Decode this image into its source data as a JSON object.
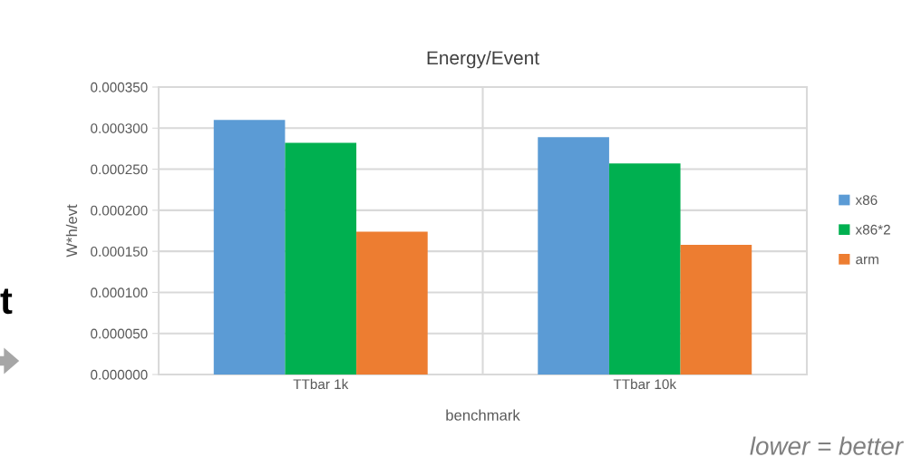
{
  "chart_data": {
    "type": "bar",
    "title": "Energy/Event",
    "xlabel": "benchmark",
    "ylabel": "W*h/evt",
    "categories": [
      "TTbar 1k",
      "TTbar 10k"
    ],
    "series": [
      {
        "name": "x86",
        "color": "#5b9bd5",
        "values": [
          0.00031,
          0.000289
        ]
      },
      {
        "name": "x86*2",
        "color": "#00b050",
        "values": [
          0.000282,
          0.000257
        ]
      },
      {
        "name": "arm",
        "color": "#ed7d31",
        "values": [
          0.000174,
          0.000158
        ]
      }
    ],
    "ylim": [
      0,
      0.00035
    ],
    "yticks": [
      {
        "value": 0,
        "label": "0.000000"
      },
      {
        "value": 5e-05,
        "label": "0.000050"
      },
      {
        "value": 0.0001,
        "label": "0.000100"
      },
      {
        "value": 0.00015,
        "label": "0.000150"
      },
      {
        "value": 0.0002,
        "label": "0.000200"
      },
      {
        "value": 0.00025,
        "label": "0.000250"
      },
      {
        "value": 0.0003,
        "label": "0.000300"
      },
      {
        "value": 0.00035,
        "label": "0.000350"
      }
    ],
    "grid": true,
    "legend": "right",
    "annotations": [
      "lower = better",
      "t"
    ]
  }
}
